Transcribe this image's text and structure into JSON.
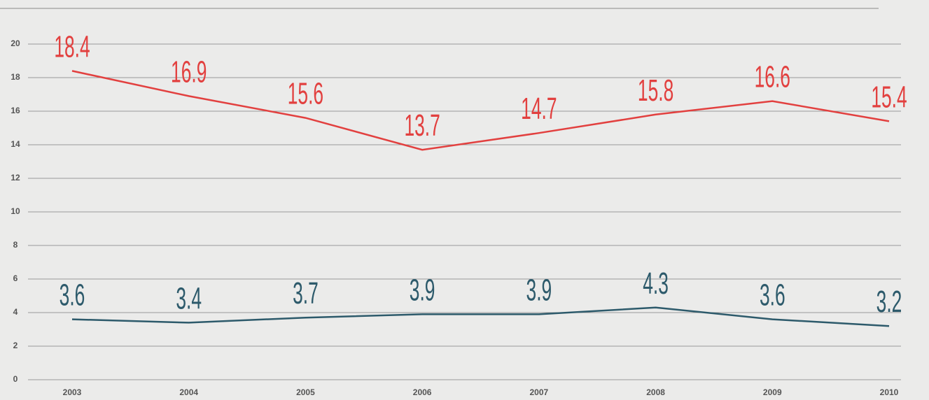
{
  "chart_data": {
    "type": "line",
    "categories": [
      "2003",
      "2004",
      "2005",
      "2006",
      "2007",
      "2008",
      "2009",
      "2010"
    ],
    "series": [
      {
        "color": "#e2403f",
        "values": [
          18.4,
          16.9,
          15.6,
          13.7,
          14.7,
          15.8,
          16.6,
          15.4
        ]
      },
      {
        "color": "#2d5a6b",
        "values": [
          3.6,
          3.4,
          3.7,
          3.9,
          3.9,
          4.3,
          3.6,
          3.2
        ]
      }
    ],
    "ylim": [
      0,
      20
    ],
    "yticks": [
      0,
      2,
      4,
      6,
      8,
      10,
      12,
      14,
      16,
      18,
      20
    ],
    "grid": true
  }
}
